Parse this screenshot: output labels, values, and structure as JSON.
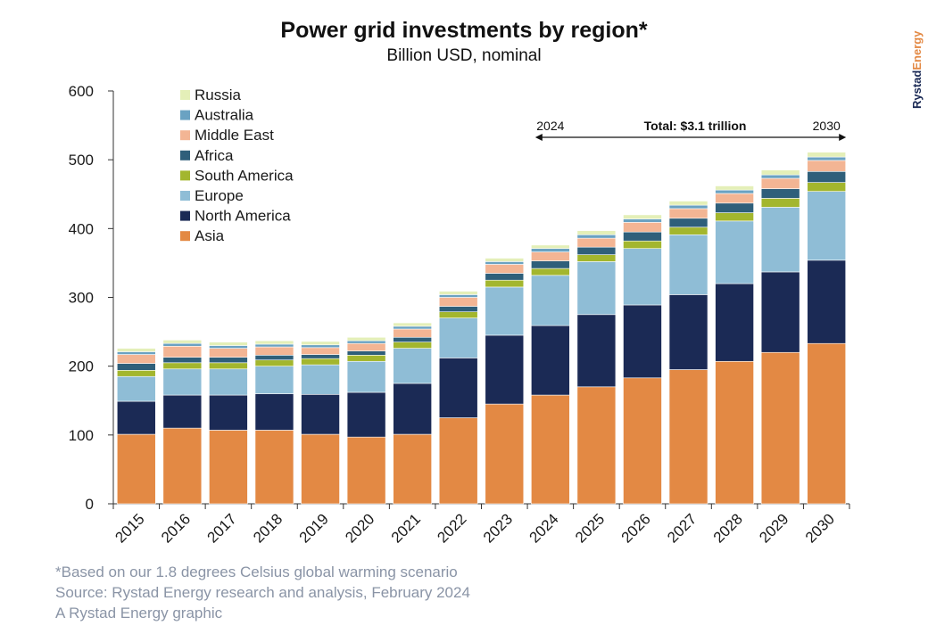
{
  "title": "Power grid investments by region*",
  "subtitle": "Billion USD, nominal",
  "brand": {
    "part1": "Rystad",
    "part2": "Energy"
  },
  "annotation": {
    "start": "2024",
    "end": "2030",
    "label": "Total: $3.1 trillion"
  },
  "footer": {
    "note": "*Based on our 1.8 degrees Celsius global warming scenario",
    "source": "Source: Rystad Energy research and analysis, February 2024",
    "credit": "A Rystad Energy graphic"
  },
  "colors": {
    "Asia": "#e38944",
    "North America": "#1b2a55",
    "Europe": "#8fbdd6",
    "South America": "#a3b62e",
    "Africa": "#2f5f7a",
    "Middle East": "#f3b594",
    "Australia": "#6aa2c2",
    "Russia": "#e4efb8"
  },
  "chart_data": {
    "type": "bar",
    "stacked": true,
    "ylim": [
      0,
      600
    ],
    "yticks": [
      0,
      100,
      200,
      300,
      400,
      500,
      600
    ],
    "categories": [
      "2015",
      "2016",
      "2017",
      "2018",
      "2019",
      "2020",
      "2021",
      "2022",
      "2023",
      "2024",
      "2025",
      "2026",
      "2027",
      "2028",
      "2029",
      "2030"
    ],
    "legend_position": "top-left",
    "series": [
      {
        "name": "Asia",
        "values": [
          101,
          110,
          107,
          107,
          101,
          97,
          101,
          125,
          145,
          158,
          170,
          183,
          195,
          207,
          220,
          233
        ]
      },
      {
        "name": "North America",
        "values": [
          48,
          48,
          51,
          53,
          58,
          65,
          74,
          87,
          100,
          101,
          105,
          106,
          109,
          113,
          117,
          121
        ]
      },
      {
        "name": "Europe",
        "values": [
          36,
          38,
          38,
          40,
          43,
          45,
          51,
          58,
          70,
          73,
          77,
          82,
          87,
          91,
          94,
          100
        ]
      },
      {
        "name": "South America",
        "values": [
          9,
          9,
          9,
          9,
          9,
          9,
          9,
          9,
          10,
          10,
          10,
          11,
          11,
          12,
          13,
          13
        ]
      },
      {
        "name": "Africa",
        "values": [
          10,
          8,
          8,
          7,
          6,
          6,
          7,
          8,
          10,
          11,
          11,
          13,
          13,
          14,
          14,
          16
        ]
      },
      {
        "name": "Middle East",
        "values": [
          13,
          16,
          13,
          12,
          10,
          11,
          12,
          13,
          13,
          13,
          13,
          14,
          14,
          14,
          15,
          16
        ]
      },
      {
        "name": "Australia",
        "values": [
          4,
          4,
          4,
          4,
          4,
          4,
          4,
          4,
          4,
          5,
          5,
          5,
          5,
          5,
          5,
          5
        ]
      },
      {
        "name": "Russia",
        "values": [
          5,
          5,
          5,
          5,
          5,
          5,
          5,
          5,
          5,
          5,
          6,
          6,
          6,
          6,
          7,
          7
        ]
      }
    ]
  }
}
